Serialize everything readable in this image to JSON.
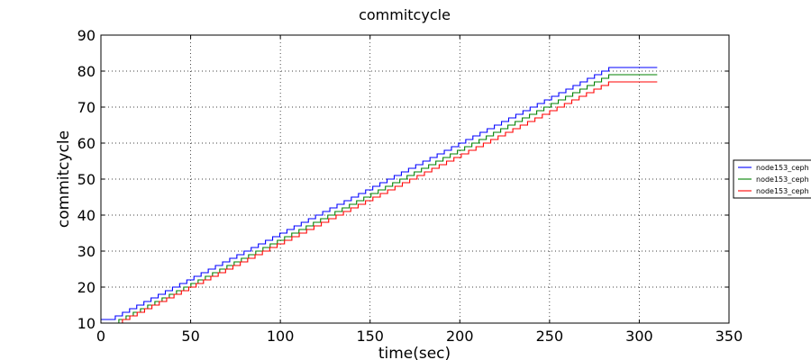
{
  "chart_data": {
    "type": "line",
    "title": "commitcycle",
    "xlabel": "time(sec)",
    "ylabel": "commitcycle",
    "xlim": [
      0,
      350
    ],
    "ylim": [
      10,
      90
    ],
    "xticks": [
      0,
      50,
      100,
      150,
      200,
      250,
      300,
      350
    ],
    "yticks": [
      10,
      20,
      30,
      40,
      50,
      60,
      70,
      80,
      90
    ],
    "grid": true,
    "step": true,
    "legend_position": "right, outside plot",
    "series": [
      {
        "name": "node153_ceph",
        "color": "#0000ff",
        "x": [
          0,
          8,
          287,
          310
        ],
        "y": [
          11,
          11,
          81,
          81
        ]
      },
      {
        "name": "node153_ceph",
        "color": "#008000",
        "x": [
          0,
          10,
          287,
          310
        ],
        "y": [
          10,
          10,
          79,
          79
        ]
      },
      {
        "name": "node153_ceph",
        "color": "#ff0000",
        "x": [
          0,
          12,
          287,
          310
        ],
        "y": [
          10,
          10,
          77,
          77
        ]
      }
    ]
  }
}
